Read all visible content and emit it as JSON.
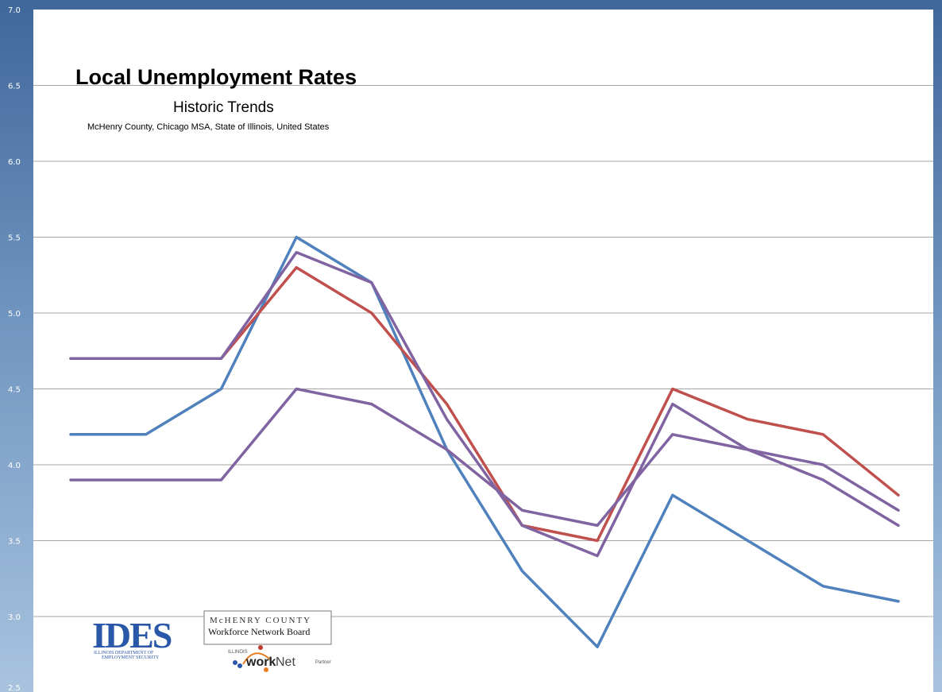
{
  "chart_data": {
    "type": "line",
    "title": "Local Unemployment Rates",
    "subtitle": "Historic Trends",
    "description_line": "McHenry County, Chicago MSA, State of Illinois, United States",
    "ylim": [
      2.5,
      7.0
    ],
    "yticks": [
      "7.0",
      "6.5",
      "6.0",
      "5.5",
      "5.0",
      "4.5",
      "4.0",
      "3.5",
      "3.0",
      "2.5"
    ],
    "ytick_values": [
      7.0,
      6.5,
      6.0,
      5.5,
      5.0,
      4.5,
      4.0,
      3.5,
      3.0,
      2.5
    ],
    "grid": true,
    "x": [
      1,
      2,
      3,
      4,
      5,
      6,
      7,
      8,
      9,
      10,
      11,
      12
    ],
    "series": [
      {
        "color": "#4f81bd",
        "values": [
          4.2,
          4.2,
          4.5,
          5.5,
          5.2,
          4.1,
          3.3,
          2.8,
          3.8,
          3.5,
          3.2,
          3.1
        ]
      },
      {
        "color": "#c0504d",
        "values": [
          4.7,
          4.7,
          4.7,
          5.3,
          5.0,
          4.4,
          3.6,
          3.5,
          4.5,
          4.3,
          4.2,
          3.8
        ]
      },
      {
        "color": "#8064a2",
        "values": [
          4.7,
          4.7,
          4.7,
          5.4,
          5.2,
          4.3,
          3.6,
          3.4,
          4.4,
          4.1,
          3.9,
          3.6
        ]
      },
      {
        "color": "#8064a2",
        "values": [
          3.9,
          3.9,
          3.9,
          4.5,
          4.4,
          4.1,
          3.7,
          3.6,
          4.2,
          4.1,
          4.0,
          3.7
        ]
      }
    ]
  },
  "logos": {
    "ides": {
      "name": "IDES",
      "subtext_1": "ILLINOIS DEPARTMENT OF",
      "subtext_2": "EMPLOYMENT SECURITY"
    },
    "mchenry": {
      "line1": "McHENRY COUNTY",
      "line2": "Workforce Network Board"
    },
    "worknet": {
      "prefix": "ILLINOIS",
      "work": "work",
      "net": "Net",
      "suffix": "Partner"
    }
  },
  "colors": {
    "plot_background": "#ffffff",
    "grid": "#a6a6a6",
    "frame_gradient_top": "#3f679a",
    "frame_gradient_bottom": "#a9c3df"
  }
}
